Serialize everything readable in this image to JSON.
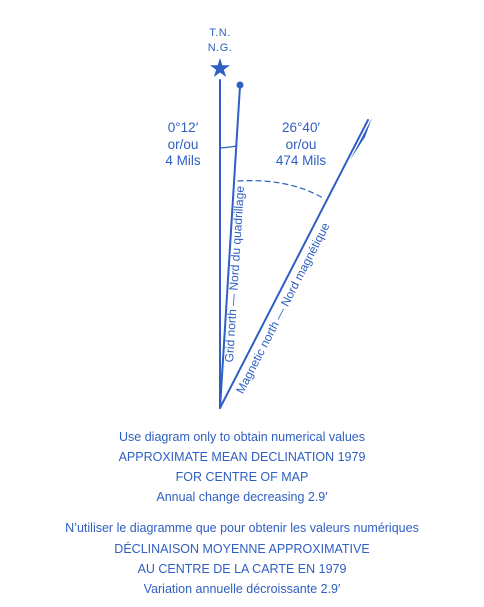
{
  "diagram": {
    "true_north_label": "T.N.",
    "grid_north_abbrev": "N.G.",
    "grid_angle": {
      "degrees": "0°12′",
      "or": "or/ou",
      "mils": "4 Mils"
    },
    "magnetic_angle": {
      "degrees": "26°40′",
      "or": "or/ou",
      "mils": "474 Mils"
    },
    "grid_north_label": "Grid north — Nord du quadrillage",
    "magnetic_north_label": "Magnetic north — Nord magnétique",
    "color": "#2f5fc2"
  },
  "notes_en": {
    "line1": "Use diagram only to obtain numerical values",
    "line2": "APPROXIMATE MEAN DECLINATION 1979",
    "line3": "FOR CENTRE OF MAP",
    "line4": "Annual change  decreasing 2.9′"
  },
  "notes_fr": {
    "line1": "N’utiliser le diagramme que pour obtenir les valeurs numériques",
    "line2": "DÉCLINAISON MOYENNE APPROXIMATIVE",
    "line3": "AU CENTRE DE LA CARTE EN 1979",
    "line4": "Variation annuelle  décroissante 2.9′"
  }
}
